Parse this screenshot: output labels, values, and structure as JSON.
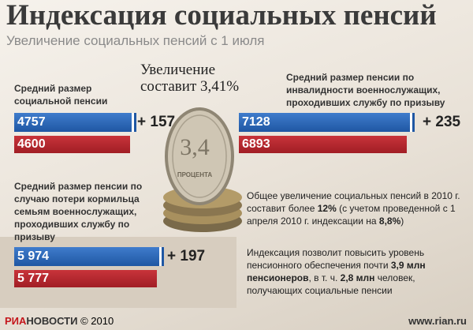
{
  "header": {
    "title": "Индексация социальных пенсий",
    "subtitle": "Увеличение социальных пенсий с 1 июля"
  },
  "headline": "Увеличение составит 3,41%",
  "groups": [
    {
      "label": "Средний размер социальной пенсии",
      "values": [
        4757,
        4600
      ],
      "increase": "+ 157"
    },
    {
      "label": "Средний размер пенсии по инвалидности военнослужащих, проходивших службу по призыву",
      "values": [
        7128,
        6893
      ],
      "increase": "+ 235"
    },
    {
      "label": "Средний размер пенсии по случаю потери кормильца семьям военнослужащих, проходивших службу по призыву",
      "values": [
        5974,
        5777
      ],
      "value_labels": [
        "5 974",
        "5 777"
      ],
      "increase": "+ 197"
    }
  ],
  "coin": {
    "number": "3,4",
    "caption": "ПРОЦЕНТА"
  },
  "paragraphs": [
    [
      {
        "text": "Общее увеличение социальных пенсий в 2010 г. составит более ",
        "bold": false
      },
      {
        "text": "12%",
        "bold": true
      },
      {
        "text": " (с учетом проведенной с 1 апреля 2010 г. индексации на ",
        "bold": false
      },
      {
        "text": "8,8%",
        "bold": true
      },
      {
        "text": ")",
        "bold": false
      }
    ],
    [
      {
        "text": "Индексация позволит повысить уровень пенсионного обеспечения почти ",
        "bold": false
      },
      {
        "text": "3,9 млн пенсионеров",
        "bold": true
      },
      {
        "text": ", в т. ч. ",
        "bold": false
      },
      {
        "text": "2,8 млн",
        "bold": true
      },
      {
        "text": " человек, получающих социальные пенсии",
        "bold": false
      }
    ]
  ],
  "footer": {
    "brand_1": "РИА",
    "brand_2": "НОВОСТИ",
    "copyright": "© 2010",
    "url": "www.rian.ru"
  }
}
